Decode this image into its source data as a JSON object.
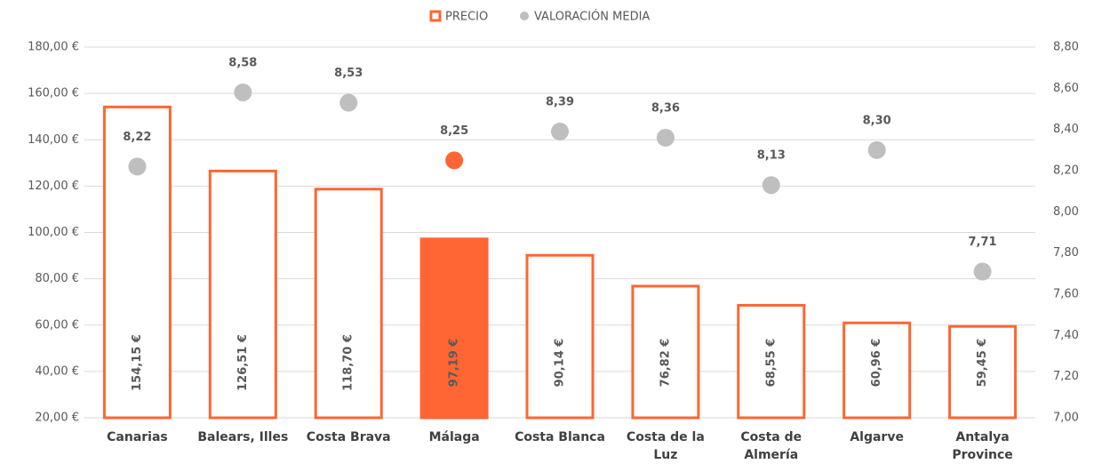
{
  "chart_data": {
    "type": "bar+scatter",
    "categories": [
      "Canarias",
      "Balears, Illes",
      "Costa Brava",
      "Málaga",
      "Costa Blanca",
      "Costa de la Luz",
      "Costa de Almería",
      "Algarve",
      "Antalya Province"
    ],
    "series": [
      {
        "name": "PRECIO",
        "type": "bar",
        "color": "#ff6633",
        "fill_colors": [
          "#ffffff",
          "#ffffff",
          "#ffffff",
          "#ff6633",
          "#ffffff",
          "#ffffff",
          "#ffffff",
          "#ffffff",
          "#ffffff"
        ],
        "values": [
          154.15,
          126.51,
          118.7,
          97.19,
          90.14,
          76.82,
          68.55,
          60.96,
          59.45
        ],
        "value_labels": [
          "154,15 €",
          "126,51 €",
          "118,70 €",
          "97,19 €",
          "90,14 €",
          "76,82 €",
          "68,55 €",
          "60,96 €",
          "59,45 €"
        ]
      },
      {
        "name": "VALORACIÓN MEDIA",
        "type": "scatter",
        "axis": "y2",
        "color": "#bfbfbf",
        "colors": [
          "#bfbfbf",
          "#bfbfbf",
          "#bfbfbf",
          "#ff6633",
          "#bfbfbf",
          "#bfbfbf",
          "#bfbfbf",
          "#bfbfbf",
          "#bfbfbf"
        ],
        "label_colors": [
          "#ff6633",
          "#ff6633",
          "#ff6633",
          "#000000",
          "#ff6633",
          "#ff6633",
          "#ff6633",
          "#ff6633",
          "#ff6633"
        ],
        "values": [
          8.22,
          8.58,
          8.53,
          8.25,
          8.39,
          8.36,
          8.13,
          8.3,
          7.71
        ],
        "value_labels": [
          "8,22",
          "8,58",
          "8,53",
          "8,25",
          "8,39",
          "8,36",
          "8,13",
          "8,30",
          "7,71"
        ]
      }
    ],
    "ylim": [
      20,
      180
    ],
    "yticks": [
      {
        "value": 20,
        "label": "20,00 €"
      },
      {
        "value": 40,
        "label": "40,00 €"
      },
      {
        "value": 60,
        "label": "60,00 €"
      },
      {
        "value": 80,
        "label": "80,00 €"
      },
      {
        "value": 100,
        "label": "100,00 €"
      },
      {
        "value": 120,
        "label": "120,00 €"
      },
      {
        "value": 140,
        "label": "140,00 €"
      },
      {
        "value": 160,
        "label": "160,00 €"
      },
      {
        "value": 180,
        "label": "180,00 €"
      }
    ],
    "y2lim": [
      7.0,
      8.8
    ],
    "y2ticks": [
      {
        "value": 7.0,
        "label": "7,00"
      },
      {
        "value": 7.2,
        "label": "7,20"
      },
      {
        "value": 7.4,
        "label": "7,40"
      },
      {
        "value": 7.6,
        "label": "7,60"
      },
      {
        "value": 7.8,
        "label": "7,80"
      },
      {
        "value": 8.0,
        "label": "8,00"
      },
      {
        "value": 8.2,
        "label": "8,20"
      },
      {
        "value": 8.4,
        "label": "8,40"
      },
      {
        "value": 8.6,
        "label": "8,60"
      },
      {
        "value": 8.8,
        "label": "8,80"
      }
    ],
    "grid": true,
    "legend": "top"
  }
}
